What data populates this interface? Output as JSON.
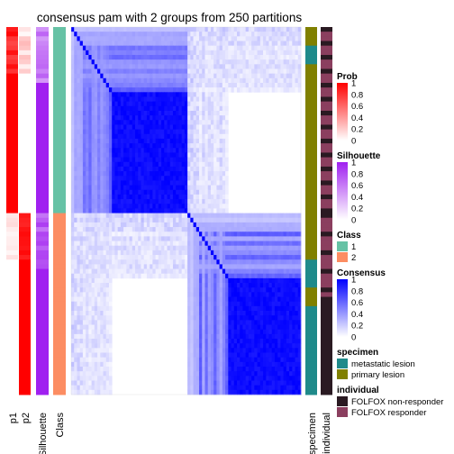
{
  "chart_data": {
    "type": "heatmap",
    "title": "consensus pam with 2 groups from 250 partitions",
    "annotation_columns_left": [
      "p1",
      "p2",
      "Silhouette",
      "Class"
    ],
    "annotation_columns_right": [
      "specimen",
      "individual"
    ],
    "group_sizes": [
      40,
      39
    ],
    "legends": [
      {
        "title": "Prob",
        "type": "gradient",
        "ticks": [
          "1",
          "0.8",
          "0.6",
          "0.4",
          "0.2",
          "0"
        ],
        "colors": [
          "#ff0000",
          "#ffffff"
        ]
      },
      {
        "title": "Silhouette",
        "type": "gradient",
        "ticks": [
          "1",
          "0.8",
          "0.6",
          "0.4",
          "0.2",
          "0"
        ],
        "colors": [
          "#a020f0",
          "#ffffff"
        ]
      },
      {
        "title": "Class",
        "type": "discrete",
        "ticks": [
          "1",
          "2"
        ],
        "colors": [
          "#66c2a5",
          "#fc8d62"
        ]
      },
      {
        "title": "Consensus",
        "type": "gradient",
        "ticks": [
          "1",
          "0.8",
          "0.6",
          "0.4",
          "0.2",
          "0"
        ],
        "colors": [
          "#0000ff",
          "#ffffff"
        ]
      },
      {
        "title": "specimen",
        "type": "discrete",
        "ticks": [
          "metastatic lesion",
          "primary lesion"
        ],
        "colors": [
          "#1f8a8a",
          "#808000"
        ]
      },
      {
        "title": "individual",
        "type": "discrete",
        "ticks": [
          "FOLFOX non-responder",
          "FOLFOX responder"
        ],
        "colors": [
          "#2a1a22",
          "#8b3f5f"
        ]
      }
    ]
  }
}
